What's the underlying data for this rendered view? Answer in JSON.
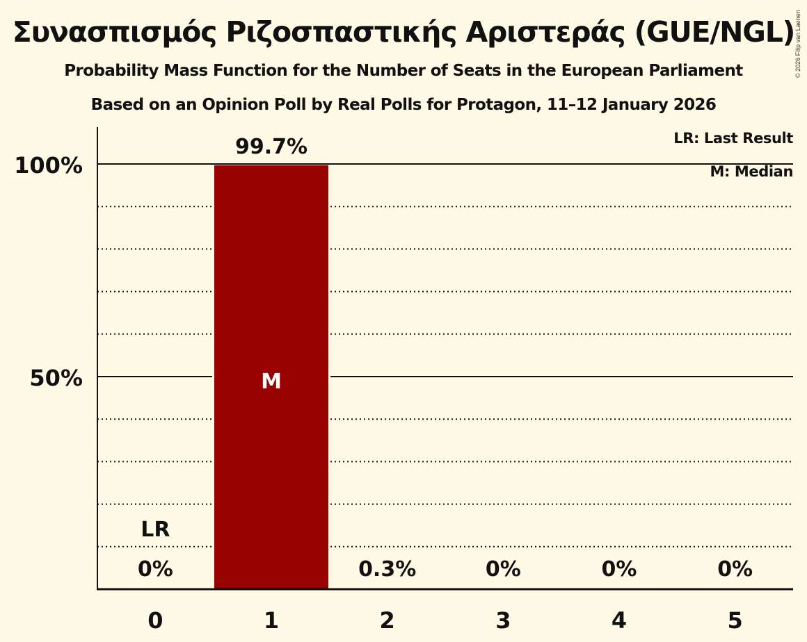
{
  "header": {
    "title": "Συνασπισμός Ριζοσπαστικής Αριστεράς (GUE/NGL)",
    "subtitle": "Probability Mass Function for the Number of Seats in the European Parliament",
    "source": "Based on an Opinion Poll by Real Polls for Protagon, 11–12 January 2026",
    "copyright": "© 2026 Filip van Laenen"
  },
  "legend": {
    "lr": "LR: Last Result",
    "m": "M: Median"
  },
  "colors": {
    "background": "#fffae5",
    "bar": "#990000",
    "axis": "#111111",
    "median_label": "#ffffff"
  },
  "chart_data": {
    "type": "bar",
    "title": "Συνασπισμός Ριζοσπαστικής Αριστεράς (GUE/NGL)",
    "subtitle": "Probability Mass Function for the Number of Seats in the European Parliament",
    "caption": "Based on an Opinion Poll by Real Polls for Protagon, 11–12 January 2026",
    "xlabel": "",
    "ylabel": "",
    "categories": [
      "0",
      "1",
      "2",
      "3",
      "4",
      "5"
    ],
    "values": [
      0,
      99.7,
      0.3,
      0,
      0,
      0
    ],
    "value_labels": [
      "0%",
      "99.7%",
      "0.3%",
      "0%",
      "0%",
      "0%"
    ],
    "ylim": [
      0,
      110
    ],
    "yticks": [
      50,
      100
    ],
    "ytick_labels": [
      "50%",
      "100%"
    ],
    "minor_grid_step": 10,
    "grid": true,
    "annotations": [
      {
        "category": "0",
        "label": "LR",
        "meaning": "Last Result"
      },
      {
        "category": "1",
        "label": "M",
        "meaning": "Median"
      }
    ],
    "legend": [
      "LR: Last Result",
      "M: Median"
    ],
    "legend_position": "top-right"
  }
}
